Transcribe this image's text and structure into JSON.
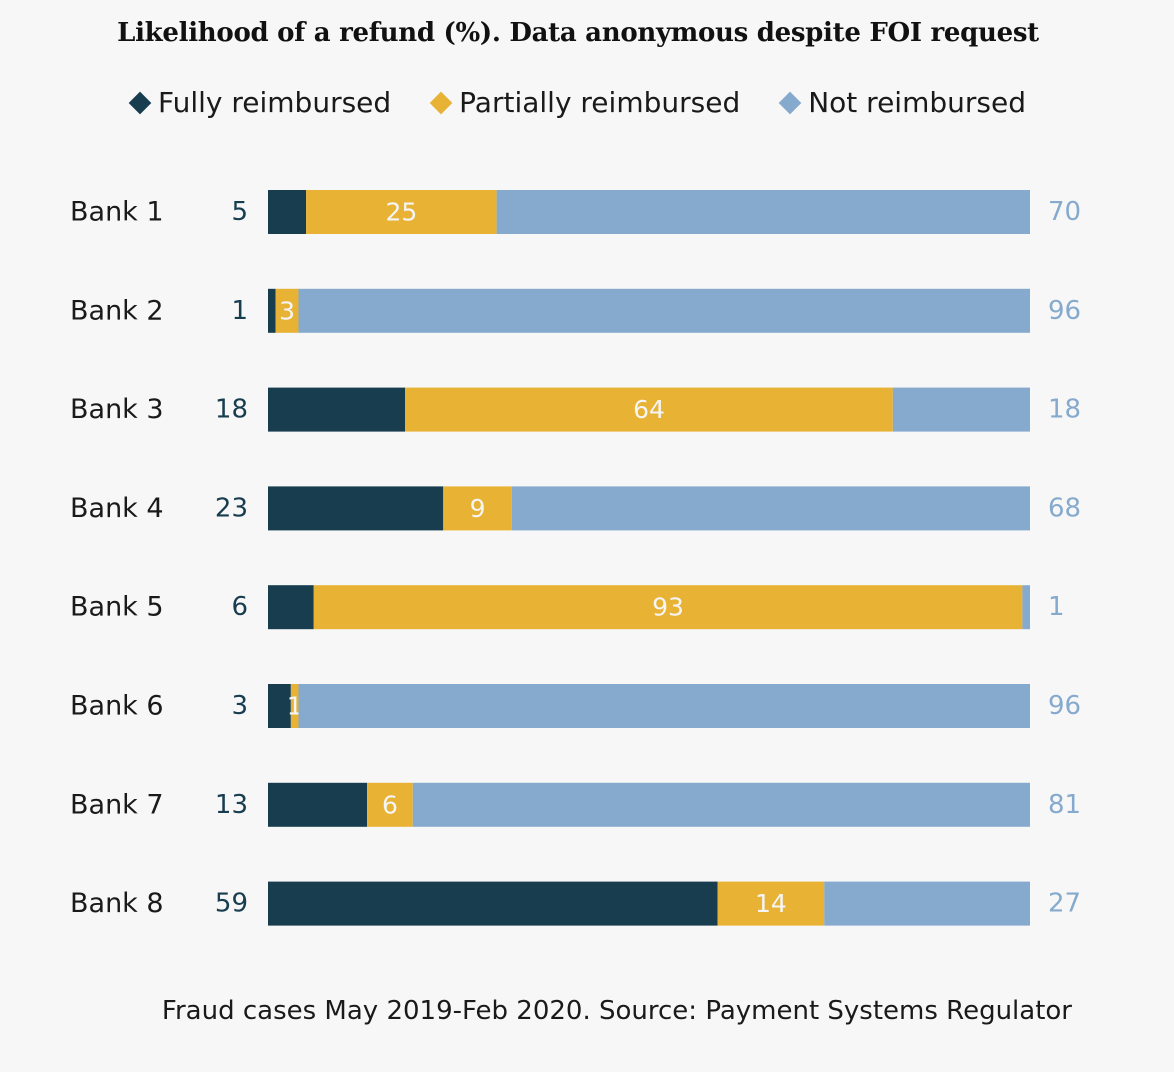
{
  "colors": {
    "fully": "#173d4f",
    "partially": "#e8b234",
    "not": "#86aacd",
    "label_dark": "#173d4f",
    "label_light": "#86aacd",
    "inner_text": "#f5f5f5"
  },
  "chart_data": {
    "type": "bar",
    "orientation": "horizontal",
    "stacked": true,
    "title": "Likelihood of a refund (%). Data anonymous despite FOI request",
    "categories": [
      "Bank 1",
      "Bank 2",
      "Bank 3",
      "Bank 4",
      "Bank 5",
      "Bank 6",
      "Bank 7",
      "Bank 8"
    ],
    "series": [
      {
        "name": "Fully reimbursed",
        "values": [
          5,
          1,
          18,
          23,
          6,
          3,
          13,
          59
        ]
      },
      {
        "name": "Partially reimbursed",
        "values": [
          25,
          3,
          64,
          9,
          93,
          1,
          6,
          14
        ]
      },
      {
        "name": "Not reimbursed",
        "values": [
          70,
          96,
          18,
          68,
          1,
          96,
          81,
          27
        ]
      }
    ],
    "xlim": [
      0,
      100
    ],
    "legend_position": "top-center",
    "grid": false,
    "footnote": "Fraud cases May 2019-Feb 2020. Source: Payment Systems Regulator"
  },
  "legend": [
    {
      "label": "Fully reimbursed",
      "color_key": "fully"
    },
    {
      "label": "Partially reimbursed",
      "color_key": "partially"
    },
    {
      "label": "Not reimbursed",
      "color_key": "not"
    }
  ]
}
